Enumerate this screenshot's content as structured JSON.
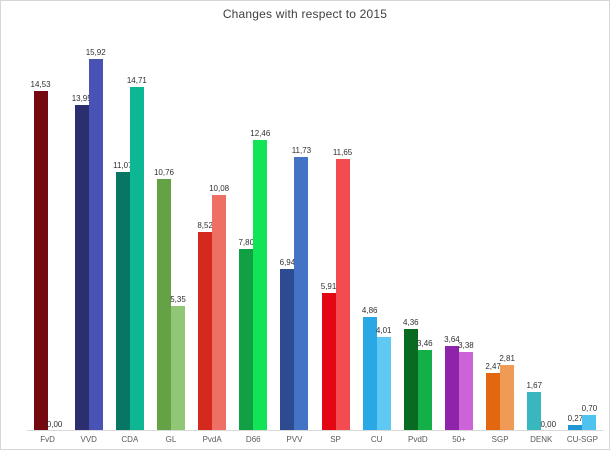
{
  "title": "Changes with respect to 2015",
  "chart_data": {
    "type": "bar",
    "title": "Changes with respect to 2015",
    "subtitle": "",
    "xlabel": "",
    "ylabel": "",
    "ylim": [
      0,
      16
    ],
    "grid": false,
    "legend": "none",
    "decimal_separator": ",",
    "categories": [
      "FvD",
      "VVD",
      "CDA",
      "GL",
      "PvdA",
      "D66",
      "PVV",
      "SP",
      "CU",
      "PvdD",
      "50+",
      "SGP",
      "DENK",
      "CU-SGP"
    ],
    "series": [
      {
        "values": [
          14.53,
          13.95,
          11.07,
          10.76,
          8.52,
          7.8,
          6.94,
          5.91,
          4.86,
          4.36,
          3.64,
          2.47,
          1.67,
          0.27
        ],
        "labels": [
          "14,53",
          "13,95",
          "11,07",
          "10,76",
          "8,52",
          "7,80",
          "6,94",
          "5,91",
          "4,86",
          "4,36",
          "3,64",
          "2,47",
          "1,67",
          "0,27"
        ],
        "colors": [
          "#740A10",
          "#2B2F70",
          "#077763",
          "#64A245",
          "#D6291E",
          "#12A045",
          "#2C4B90",
          "#E30613",
          "#2AA8E6",
          "#096B22",
          "#8E24AA",
          "#E2670E",
          "#38B7BE",
          "#1F96D2"
        ]
      },
      {
        "values": [
          0.0,
          15.92,
          14.71,
          5.35,
          10.08,
          12.46,
          11.73,
          11.65,
          4.01,
          3.46,
          3.38,
          2.81,
          0.0,
          0.7
        ],
        "labels": [
          "0,00",
          "15,92",
          "14,71",
          "5,35",
          "10,08",
          "12,46",
          "11,73",
          "11,65",
          "4,01",
          "3,46",
          "3,38",
          "2,81",
          "0,00",
          "0,70"
        ],
        "colors": [
          "#B23A3A",
          "#4853B5",
          "#0DB793",
          "#90C675",
          "#EE6F63",
          "#11E557",
          "#4473C5",
          "#F44B51",
          "#60C9F3",
          "#13AF47",
          "#CC63D9",
          "#F09B55",
          "#7FD4D8",
          "#4FC3F0"
        ]
      }
    ],
    "colors": {
      "title_text": "#404040",
      "value_label_text": "#303030",
      "category_label_text": "#595959",
      "axis_line": "#d9d9d9",
      "background": "#ffffff",
      "border": "#d6d6d6"
    }
  }
}
